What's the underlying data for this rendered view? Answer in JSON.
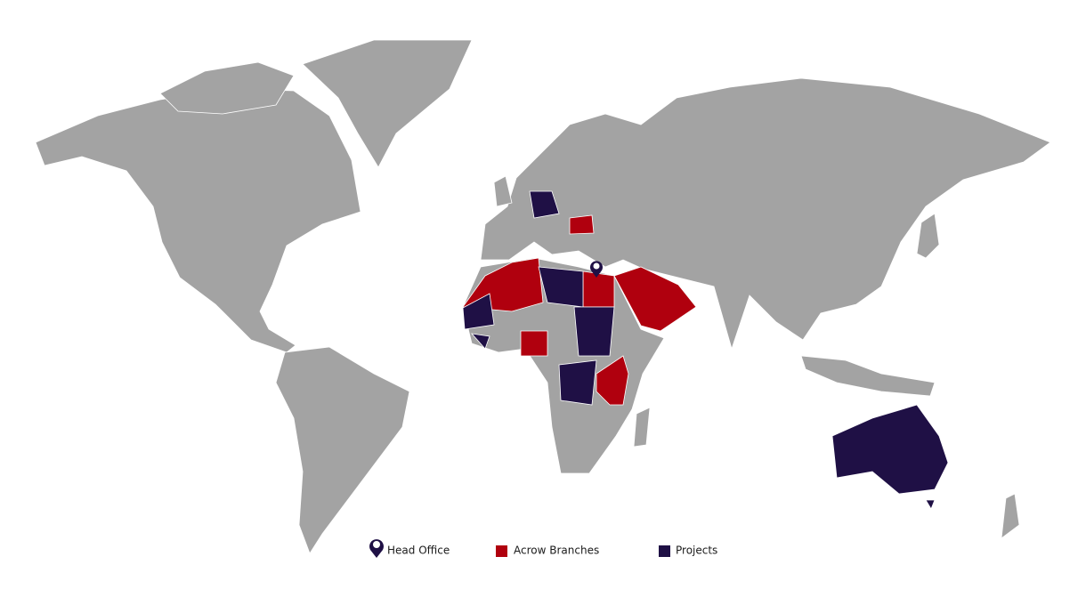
{
  "legend": {
    "items": [
      {
        "label": "Head Office",
        "color": "#1f1045"
      },
      {
        "label": "Acrow Branches",
        "color": "#b0000e"
      },
      {
        "label": "Projects",
        "color": "#1f1045"
      }
    ]
  }
}
